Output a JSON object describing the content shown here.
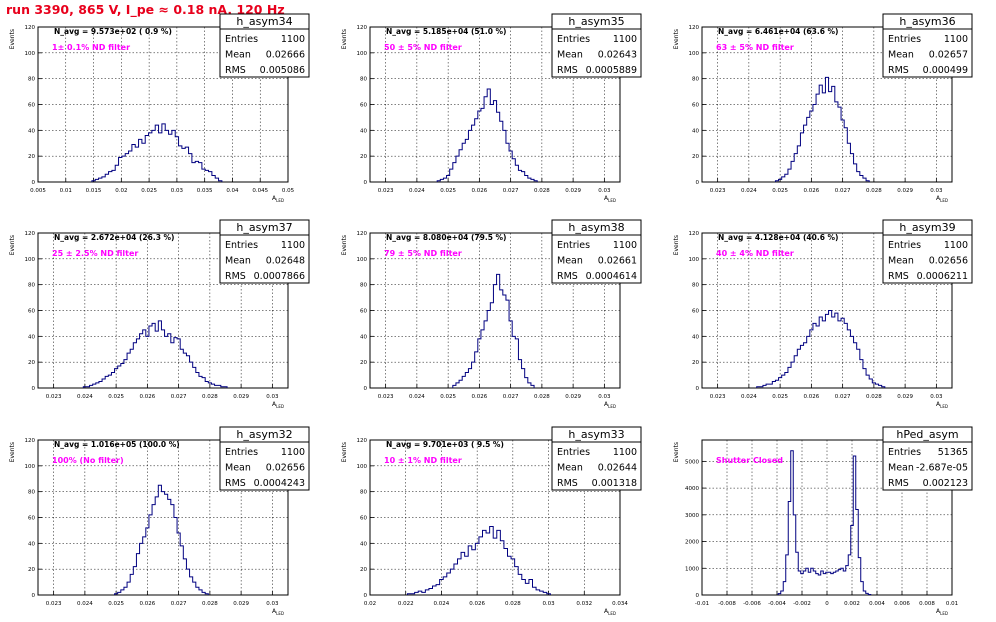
{
  "title": "run 3390,   865 V, I_pe ≈ 0.18 nA, 120 Hz",
  "colors": {
    "title": "#e8001c",
    "histogram_line": "#000080",
    "annotation": "#ff00ff",
    "frame": "#000000",
    "grid": "#000000"
  },
  "chart_data": [
    {
      "type": "histogram",
      "name": "h_asym34",
      "stats": {
        "entries_label": "Entries",
        "entries": "1100",
        "mean_label": "Mean",
        "mean": "0.02666",
        "rms_label": "RMS",
        "rms": "0.005086"
      },
      "n_avg_label": "N_avg = 9.573e+02 ( 0.9 %)",
      "filter_label": "1± 0.1% ND filter",
      "xlabel": "A_LED",
      "ylabel": "Events",
      "xlim": [
        0.005,
        0.05
      ],
      "ylim": [
        0,
        120
      ],
      "grid": true,
      "xticks": [
        "0.005",
        "0.01",
        "0.015",
        "0.02",
        "0.025",
        "0.03",
        "0.035",
        "0.04",
        "0.045",
        "0.05"
      ],
      "yticks": [
        "0",
        "20",
        "40",
        "60",
        "80",
        "100",
        "120"
      ],
      "x": [
        0.015,
        0.0156,
        0.0162,
        0.0168,
        0.0174,
        0.018,
        0.0186,
        0.0192,
        0.0198,
        0.0204,
        0.021,
        0.0216,
        0.0222,
        0.0228,
        0.0234,
        0.024,
        0.0246,
        0.0252,
        0.0258,
        0.0264,
        0.027,
        0.0276,
        0.0282,
        0.0288,
        0.0294,
        0.03,
        0.0306,
        0.0312,
        0.0318,
        0.0324,
        0.033,
        0.0336,
        0.0342,
        0.0348,
        0.0354,
        0.036,
        0.0366,
        0.0372,
        0.0378
      ],
      "values": [
        1,
        2,
        3,
        4,
        6,
        8,
        9,
        13,
        19,
        20,
        22,
        24,
        29,
        27,
        33,
        30,
        36,
        38,
        40,
        44,
        38,
        45,
        40,
        37,
        40,
        35,
        28,
        26,
        27,
        22,
        15,
        16,
        15,
        10,
        9,
        8,
        5,
        3,
        1
      ]
    },
    {
      "type": "histogram",
      "name": "h_asym35",
      "stats": {
        "entries_label": "Entries",
        "entries": "1100",
        "mean_label": "Mean",
        "mean": "0.02643",
        "rms_label": "RMS",
        "rms": "0.0005889"
      },
      "n_avg_label": "N_avg = 5.185e+04 (51.0 %)",
      "filter_label": "50 ± 5% ND filter",
      "xlabel": "A_LED",
      "ylabel": "Events",
      "xlim": [
        0.0225,
        0.0305
      ],
      "ylim": [
        0,
        120
      ],
      "grid": true,
      "xticks": [
        "0.023",
        "0.024",
        "0.025",
        "0.026",
        "0.027",
        "0.028",
        "0.029",
        "0.03"
      ],
      "yticks": [
        "0",
        "20",
        "40",
        "60",
        "80",
        "100",
        "120"
      ],
      "x": [
        0.0247,
        0.0248,
        0.0249,
        0.025,
        0.0251,
        0.0252,
        0.0253,
        0.0254,
        0.0255,
        0.0256,
        0.0257,
        0.0258,
        0.0259,
        0.026,
        0.0261,
        0.0262,
        0.0263,
        0.0264,
        0.0265,
        0.0266,
        0.0267,
        0.0268,
        0.0269,
        0.027,
        0.0271,
        0.0272,
        0.0273,
        0.0274,
        0.0275,
        0.0276,
        0.0277,
        0.0278
      ],
      "values": [
        1,
        2,
        3,
        5,
        10,
        15,
        20,
        25,
        30,
        33,
        40,
        44,
        49,
        55,
        57,
        66,
        72,
        60,
        63,
        54,
        47,
        40,
        30,
        24,
        18,
        13,
        9,
        8,
        5,
        3,
        2,
        1
      ]
    },
    {
      "type": "histogram",
      "name": "h_asym36",
      "stats": {
        "entries_label": "Entries",
        "entries": "1100",
        "mean_label": "Mean",
        "mean": "0.02657",
        "rms_label": "RMS",
        "rms": "0.000499"
      },
      "n_avg_label": "N_avg = 6.461e+04 (63.6 %)",
      "filter_label": "63 ± 5% ND filter",
      "xlabel": "A_LED",
      "ylabel": "Events",
      "xlim": [
        0.0225,
        0.0305
      ],
      "ylim": [
        0,
        120
      ],
      "grid": true,
      "xticks": [
        "0.023",
        "0.024",
        "0.025",
        "0.026",
        "0.027",
        "0.028",
        "0.029",
        "0.03"
      ],
      "yticks": [
        "0",
        "20",
        "40",
        "60",
        "80",
        "100",
        "120"
      ],
      "x": [
        0.0249,
        0.025,
        0.0251,
        0.0252,
        0.0253,
        0.0254,
        0.0255,
        0.0256,
        0.0257,
        0.0258,
        0.0259,
        0.026,
        0.0261,
        0.0262,
        0.0263,
        0.0264,
        0.0265,
        0.0266,
        0.0267,
        0.0268,
        0.0269,
        0.027,
        0.0271,
        0.0272,
        0.0273,
        0.0274,
        0.0275,
        0.0276,
        0.0277,
        0.0278
      ],
      "values": [
        1,
        2,
        4,
        6,
        10,
        16,
        22,
        28,
        38,
        44,
        50,
        55,
        60,
        68,
        75,
        69,
        81,
        70,
        74,
        62,
        58,
        48,
        42,
        30,
        22,
        14,
        8,
        5,
        3,
        1
      ]
    },
    {
      "type": "histogram",
      "name": "h_asym37",
      "stats": {
        "entries_label": "Entries",
        "entries": "1100",
        "mean_label": "Mean",
        "mean": "0.02648",
        "rms_label": "RMS",
        "rms": "0.0007866"
      },
      "n_avg_label": "N_avg = 2.672e+04 (26.3 %)",
      "filter_label": "25 ± 2.5% ND filter",
      "xlabel": "A_LED",
      "ylabel": "Events",
      "xlim": [
        0.0225,
        0.0305
      ],
      "ylim": [
        0,
        120
      ],
      "grid": true,
      "xticks": [
        "0.023",
        "0.024",
        "0.025",
        "0.026",
        "0.027",
        "0.028",
        "0.029",
        "0.03"
      ],
      "yticks": [
        "0",
        "20",
        "40",
        "60",
        "80",
        "100",
        "120"
      ],
      "x": [
        0.024,
        0.0241,
        0.0242,
        0.0243,
        0.0244,
        0.0245,
        0.0246,
        0.0247,
        0.0248,
        0.0249,
        0.025,
        0.0251,
        0.0252,
        0.0253,
        0.0254,
        0.0255,
        0.0256,
        0.0257,
        0.0258,
        0.0259,
        0.026,
        0.0261,
        0.0262,
        0.0263,
        0.0264,
        0.0265,
        0.0266,
        0.0267,
        0.0268,
        0.0269,
        0.027,
        0.0271,
        0.0272,
        0.0273,
        0.0274,
        0.0275,
        0.0276,
        0.0277,
        0.0278,
        0.0279,
        0.028,
        0.0281,
        0.0282,
        0.0283,
        0.0284,
        0.0285
      ],
      "values": [
        1,
        1,
        2,
        3,
        4,
        5,
        7,
        9,
        10,
        12,
        15,
        17,
        19,
        22,
        27,
        30,
        35,
        38,
        42,
        45,
        40,
        48,
        50,
        44,
        52,
        45,
        40,
        42,
        35,
        39,
        38,
        30,
        27,
        25,
        20,
        16,
        12,
        9,
        8,
        5,
        4,
        3,
        2,
        2,
        1,
        1
      ]
    },
    {
      "type": "histogram",
      "name": "h_asym38",
      "stats": {
        "entries_label": "Entries",
        "entries": "1100",
        "mean_label": "Mean",
        "mean": "0.02661",
        "rms_label": "RMS",
        "rms": "0.0004614"
      },
      "n_avg_label": "N_avg = 8.080e+04 (79.5 %)",
      "filter_label": "79 ± 5% ND filter",
      "xlabel": "A_LED",
      "ylabel": "Events",
      "xlim": [
        0.0225,
        0.0305
      ],
      "ylim": [
        0,
        120
      ],
      "grid": true,
      "xticks": [
        "0.023",
        "0.024",
        "0.025",
        "0.026",
        "0.027",
        "0.028",
        "0.029",
        "0.03"
      ],
      "yticks": [
        "0",
        "20",
        "40",
        "60",
        "80",
        "100",
        "120"
      ],
      "x": [
        0.0252,
        0.0253,
        0.0254,
        0.0255,
        0.0256,
        0.0257,
        0.0258,
        0.0259,
        0.026,
        0.0261,
        0.0262,
        0.0263,
        0.0264,
        0.0265,
        0.0266,
        0.0267,
        0.0268,
        0.0269,
        0.027,
        0.0271,
        0.0272,
        0.0273,
        0.0274,
        0.0275,
        0.0276,
        0.0277
      ],
      "values": [
        2,
        4,
        6,
        9,
        12,
        15,
        20,
        28,
        38,
        45,
        52,
        60,
        66,
        80,
        88,
        76,
        72,
        68,
        52,
        40,
        38,
        22,
        15,
        8,
        4,
        2
      ]
    },
    {
      "type": "histogram",
      "name": "h_asym39",
      "stats": {
        "entries_label": "Entries",
        "entries": "1100",
        "mean_label": "Mean",
        "mean": "0.02656",
        "rms_label": "RMS",
        "rms": "0.0006211"
      },
      "n_avg_label": "N_avg = 4.128e+04 (40.6 %)",
      "filter_label": "40 ± 4% ND filter",
      "xlabel": "A_LED",
      "ylabel": "Events",
      "xlim": [
        0.0225,
        0.0305
      ],
      "ylim": [
        0,
        120
      ],
      "grid": true,
      "xticks": [
        "0.023",
        "0.024",
        "0.025",
        "0.026",
        "0.027",
        "0.028",
        "0.029",
        "0.03"
      ],
      "yticks": [
        "0",
        "20",
        "40",
        "60",
        "80",
        "100",
        "120"
      ],
      "x": [
        0.0243,
        0.0244,
        0.0245,
        0.0246,
        0.0247,
        0.0248,
        0.0249,
        0.025,
        0.0251,
        0.0252,
        0.0253,
        0.0254,
        0.0255,
        0.0256,
        0.0257,
        0.0258,
        0.0259,
        0.026,
        0.0261,
        0.0262,
        0.0263,
        0.0264,
        0.0265,
        0.0266,
        0.0267,
        0.0268,
        0.0269,
        0.027,
        0.0271,
        0.0272,
        0.0273,
        0.0274,
        0.0275,
        0.0276,
        0.0277,
        0.0278,
        0.0279,
        0.028,
        0.0281,
        0.0282,
        0.0283
      ],
      "values": [
        1,
        1,
        2,
        3,
        3,
        5,
        6,
        8,
        10,
        12,
        16,
        20,
        25,
        30,
        33,
        35,
        40,
        45,
        50,
        48,
        55,
        52,
        57,
        60,
        55,
        58,
        52,
        54,
        50,
        45,
        40,
        35,
        30,
        22,
        15,
        10,
        7,
        4,
        3,
        2,
        1
      ]
    },
    {
      "type": "histogram",
      "name": "h_asym32",
      "stats": {
        "entries_label": "Entries",
        "entries": "1100",
        "mean_label": "Mean",
        "mean": "0.02656",
        "rms_label": "RMS",
        "rms": "0.0004243"
      },
      "n_avg_label": "N_avg = 1.016e+05 (100.0 %)",
      "filter_label": "100% (No filter)",
      "xlabel": "A_LED",
      "ylabel": "Events",
      "xlim": [
        0.0225,
        0.0305
      ],
      "ylim": [
        0,
        120
      ],
      "grid": true,
      "xticks": [
        "0.023",
        "0.024",
        "0.025",
        "0.026",
        "0.027",
        "0.028",
        "0.029",
        "0.03"
      ],
      "yticks": [
        "0",
        "20",
        "40",
        "60",
        "80",
        "100",
        "120"
      ],
      "x": [
        0.025,
        0.0251,
        0.0252,
        0.0253,
        0.0254,
        0.0255,
        0.0256,
        0.0257,
        0.0258,
        0.0259,
        0.026,
        0.0261,
        0.0262,
        0.0263,
        0.0264,
        0.0265,
        0.0266,
        0.0267,
        0.0268,
        0.0269,
        0.027,
        0.0271,
        0.0272,
        0.0273,
        0.0274,
        0.0275,
        0.0276,
        0.0277,
        0.0278,
        0.0279
      ],
      "values": [
        1,
        2,
        4,
        6,
        10,
        16,
        22,
        32,
        40,
        45,
        52,
        62,
        70,
        76,
        85,
        80,
        78,
        74,
        70,
        60,
        48,
        38,
        28,
        20,
        14,
        10,
        6,
        4,
        2,
        1
      ]
    },
    {
      "type": "histogram",
      "name": "h_asym33",
      "stats": {
        "entries_label": "Entries",
        "entries": "1100",
        "mean_label": "Mean",
        "mean": "0.02644",
        "rms_label": "RMS",
        "rms": "0.001318"
      },
      "n_avg_label": "N_avg = 9.701e+03 ( 9.5 %)",
      "filter_label": "10 ± 1% ND filter",
      "xlabel": "A_LED",
      "ylabel": "Events",
      "xlim": [
        0.02,
        0.034
      ],
      "ylim": [
        0,
        120
      ],
      "grid": true,
      "xticks": [
        "0.02",
        "0.022",
        "0.024",
        "0.026",
        "0.028",
        "0.03",
        "0.032",
        "0.034"
      ],
      "yticks": [
        "0",
        "20",
        "40",
        "60",
        "80",
        "100",
        "120"
      ],
      "x": [
        0.0222,
        0.0224,
        0.0226,
        0.0228,
        0.023,
        0.0232,
        0.0234,
        0.0236,
        0.0238,
        0.024,
        0.0242,
        0.0244,
        0.0246,
        0.0248,
        0.025,
        0.0252,
        0.0254,
        0.0256,
        0.0258,
        0.026,
        0.0262,
        0.0264,
        0.0266,
        0.0268,
        0.027,
        0.0272,
        0.0274,
        0.0276,
        0.0278,
        0.028,
        0.0282,
        0.0284,
        0.0286,
        0.0288,
        0.029,
        0.0292,
        0.0294,
        0.0296,
        0.0298,
        0.03
      ],
      "values": [
        1,
        1,
        2,
        3,
        2,
        4,
        5,
        7,
        8,
        12,
        14,
        17,
        20,
        24,
        28,
        33,
        30,
        38,
        35,
        40,
        45,
        50,
        48,
        53,
        44,
        50,
        42,
        36,
        30,
        28,
        22,
        16,
        12,
        9,
        12,
        6,
        4,
        3,
        2,
        1
      ]
    },
    {
      "type": "histogram",
      "name": "hPed_asym",
      "stats": {
        "entries_label": "Entries",
        "entries": "51365",
        "mean_label": "Mean",
        "mean": "-2.687e-05",
        "rms_label": "RMS",
        "rms": "0.002123"
      },
      "n_avg_label": "",
      "filter_label": "Shutter Closed",
      "xlabel": "A_LED",
      "ylabel": "Events",
      "xlim": [
        -0.01,
        0.01
      ],
      "ylim": [
        0,
        5800
      ],
      "grid": true,
      "xticks": [
        "-0.01",
        "-0.008",
        "-0.006",
        "-0.004",
        "-0.002",
        "0",
        "0.002",
        "0.004",
        "0.006",
        "0.008",
        "0.01"
      ],
      "yticks": [
        "0",
        "1000",
        "2000",
        "3000",
        "4000",
        "5000"
      ],
      "x": [
        -0.0038,
        -0.0036,
        -0.0034,
        -0.0032,
        -0.003,
        -0.0028,
        -0.0026,
        -0.0024,
        -0.0022,
        -0.002,
        -0.0018,
        -0.0016,
        -0.0014,
        -0.0012,
        -0.001,
        -0.0008,
        -0.0006,
        -0.0004,
        -0.0002,
        0.0,
        0.0002,
        0.0004,
        0.0006,
        0.0008,
        0.001,
        0.0012,
        0.0014,
        0.0016,
        0.0018,
        0.002,
        0.0022,
        0.0024,
        0.0026,
        0.0028,
        0.003,
        0.0032,
        0.0034
      ],
      "values": [
        50,
        150,
        500,
        1500,
        3500,
        5400,
        3000,
        1600,
        900,
        800,
        900,
        1000,
        850,
        1000,
        900,
        800,
        750,
        900,
        800,
        850,
        850,
        800,
        850,
        900,
        950,
        1000,
        900,
        1100,
        1500,
        2600,
        5200,
        3200,
        1400,
        500,
        150,
        60,
        20
      ]
    }
  ]
}
